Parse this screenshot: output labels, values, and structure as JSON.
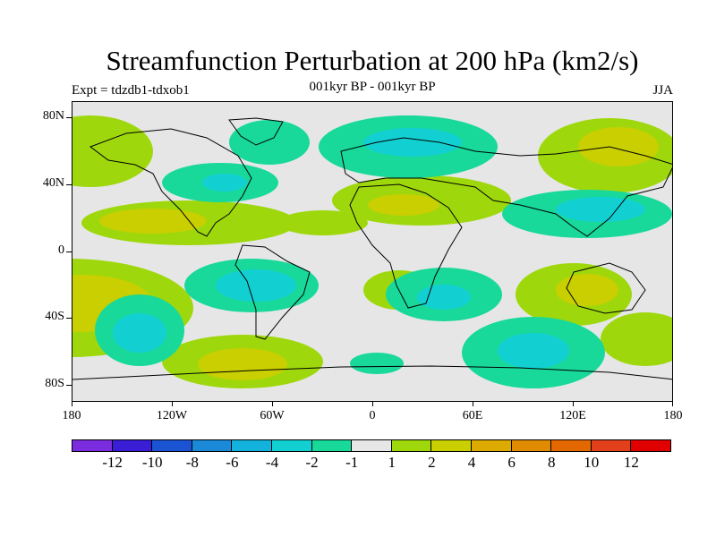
{
  "title": "Streamfunction Perturbation at 200 hPa (km2/s)",
  "left_subtitle": "Expt = tdzdb1-tdxob1",
  "center_subtitle": "001kyr BP - 001kyr BP",
  "right_subtitle": "JJA",
  "lat_labels": [
    "80N",
    "40N",
    "0",
    "40S",
    "80S"
  ],
  "lon_labels": [
    "180",
    "120W",
    "60W",
    "0",
    "60E",
    "120E",
    "180"
  ],
  "colorbar": {
    "colors": [
      "#7b2cde",
      "#3a1ed6",
      "#1a54d2",
      "#1a8ad8",
      "#12b2dc",
      "#12d0d2",
      "#18d99a",
      "#e6e6e6",
      "#9ed80c",
      "#c9cf00",
      "#dcaa00",
      "#e18c00",
      "#e46800",
      "#e2401a",
      "#e00000"
    ],
    "labels": [
      "-12",
      "-10",
      "-8",
      "-6",
      "-4",
      "-2",
      "-1",
      "1",
      "2",
      "4",
      "6",
      "8",
      "10",
      "12"
    ]
  },
  "palette": {
    "neg1": "#18d99a",
    "neg2": "#12d0d2",
    "neg3": "#12b2dc",
    "pos1": "#9ed80c",
    "pos2": "#c9cf00",
    "pos3": "#dcaa00",
    "background": "#e6e6e6"
  }
}
